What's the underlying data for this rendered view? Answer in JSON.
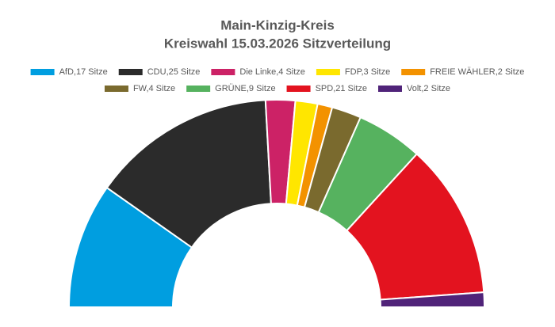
{
  "chart_data": {
    "type": "semicircle",
    "title": "Main-Kinzig-Kreis",
    "subtitle": "Kreiswahl 15.03.2026 Sitzverteilung",
    "categories": [
      "AfD,17 Sitze",
      "CDU,25 Sitze",
      "Die Linke,4 Sitze",
      "FDP,3 Sitze",
      "FREIE WÄHLER,2 Sitze",
      "FW,4 Sitze",
      "GRÜNE,9 Sitze",
      "SPD,21 Sitze",
      "Volt,2 Sitze"
    ],
    "values": [
      17,
      25,
      4,
      3,
      2,
      4,
      9,
      21,
      2
    ],
    "colors": [
      "#009ee0",
      "#2b2b2b",
      "#cc2266",
      "#ffe600",
      "#f39200",
      "#7a6a2e",
      "#56b25f",
      "#e3131f",
      "#502379"
    ],
    "legend": "top"
  }
}
